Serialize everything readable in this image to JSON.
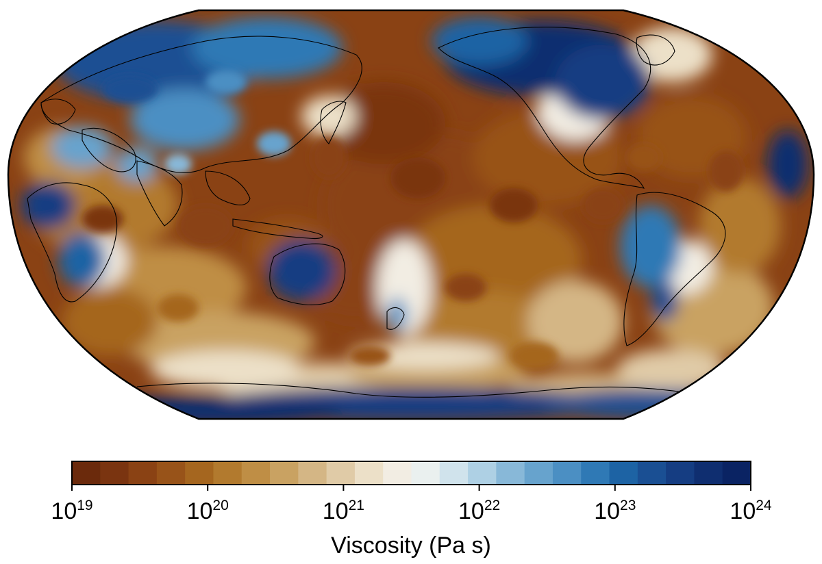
{
  "map": {
    "projection": "robinson",
    "central_meridian": "180",
    "field": "viscosity",
    "show_coastlines": true
  },
  "colorbar": {
    "label": "Viscosity (Pa s)",
    "scale": "log",
    "min_exponent": 19,
    "max_exponent": 24,
    "tick_base": "10",
    "ticks": [
      {
        "base": "10",
        "exp": "19"
      },
      {
        "base": "10",
        "exp": "20"
      },
      {
        "base": "10",
        "exp": "21"
      },
      {
        "base": "10",
        "exp": "22"
      },
      {
        "base": "10",
        "exp": "23"
      },
      {
        "base": "10",
        "exp": "24"
      }
    ],
    "colors": [
      "#6b2a0c",
      "#7a3410",
      "#8a4214",
      "#985319",
      "#a5661f",
      "#b27a2e",
      "#bf8e45",
      "#c9a262",
      "#d4b685",
      "#e0cba7",
      "#ece0c8",
      "#f2ede3",
      "#eaf0ef",
      "#d0e3ec",
      "#aed0e4",
      "#88b8d8",
      "#67a3cd",
      "#4b8fc3",
      "#2f79b5",
      "#1d63a4",
      "#1a4f93",
      "#153d82",
      "#0f2e70",
      "#0a2363"
    ]
  }
}
